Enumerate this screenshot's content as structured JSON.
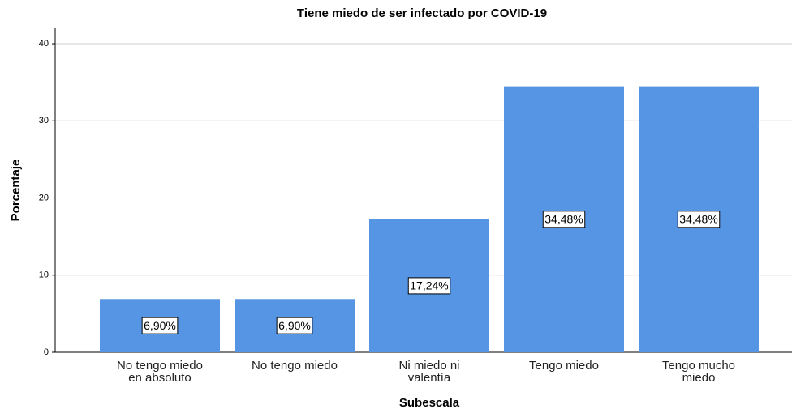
{
  "chart_data": {
    "type": "bar",
    "title": "Tiene miedo de ser infectado por COVID-19",
    "x_label": "Subescala",
    "y_label": "Porcentaje",
    "categories": [
      "No tengo miedo\nen absoluto",
      "No tengo miedo",
      "Ni miedo ni\nvalentía",
      "Tengo miedo",
      "Tengo mucho\nmiedo"
    ],
    "values": [
      6.9,
      6.9,
      17.24,
      34.48,
      34.48
    ],
    "value_labels": [
      "6,90%",
      "6,90%",
      "17,24%",
      "34,48%",
      "34,48%"
    ],
    "color": "#5694e4",
    "ylim": [
      0,
      42
    ],
    "yticks": [
      0,
      10,
      20,
      30,
      40
    ],
    "grid": true
  }
}
